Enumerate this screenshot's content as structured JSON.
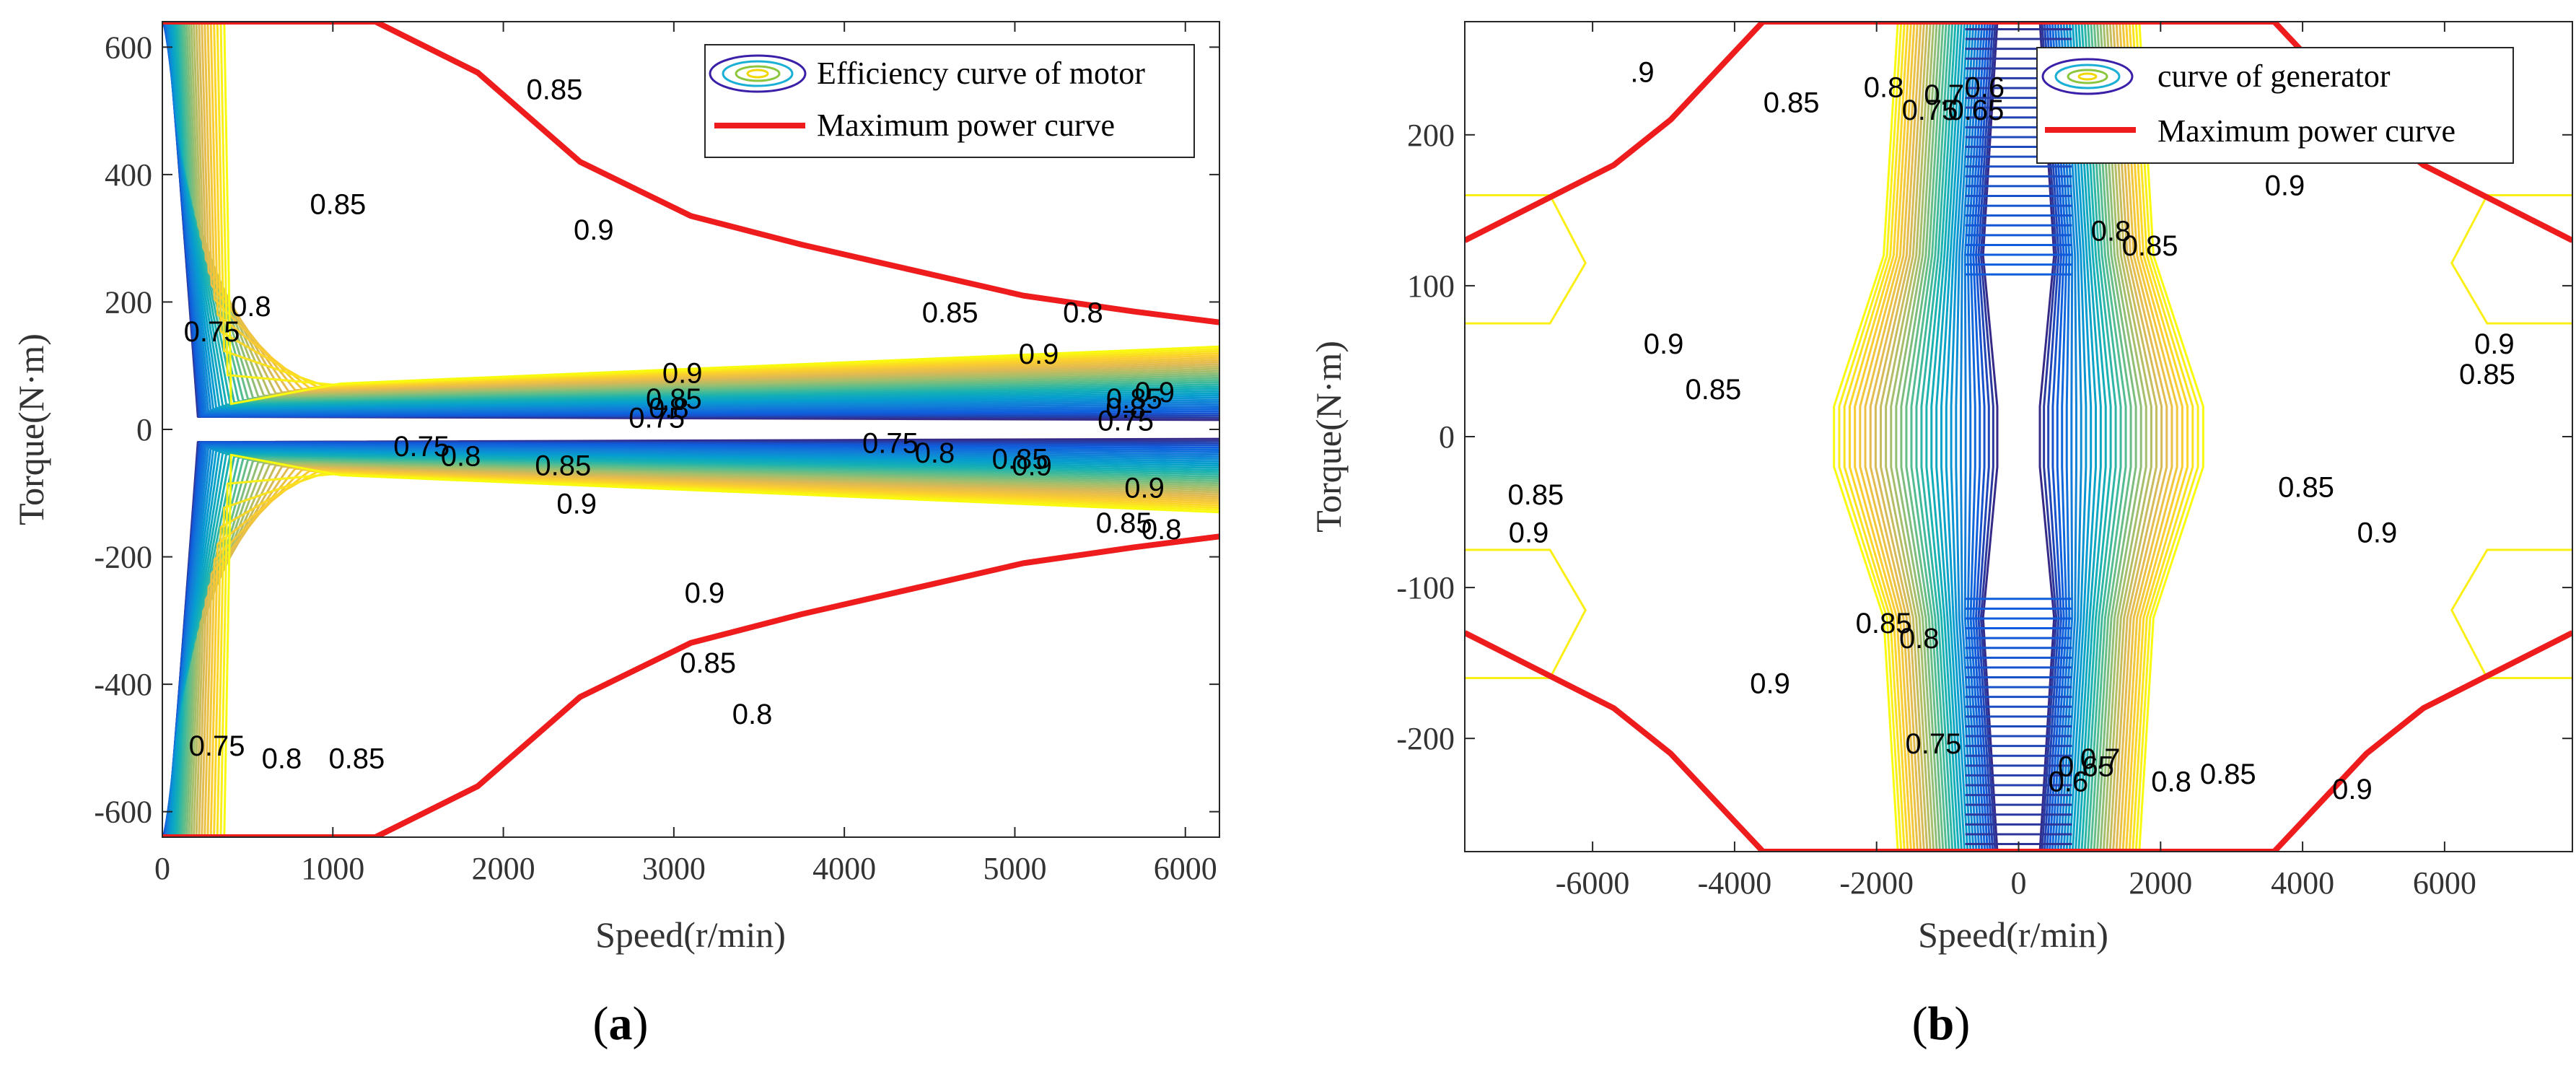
{
  "chart_data": [
    {
      "type": "contour",
      "panel_label": "a",
      "xlabel": "Speed(r/min)",
      "ylabel": "Torque(N·m)",
      "xlim": [
        0,
        6200
      ],
      "ylim": [
        -640,
        640
      ],
      "xticks": [
        0,
        1000,
        2000,
        3000,
        4000,
        5000,
        6000
      ],
      "yticks": [
        -600,
        -400,
        -200,
        0,
        200,
        400,
        600
      ],
      "legend": {
        "position": "top-right",
        "entries": [
          "Efficiency curve of motor",
          "Maximum power curve"
        ]
      },
      "contour_levels": [
        "0.75",
        "0.8",
        "0.85",
        "0.9"
      ],
      "max_power_curve": {
        "x": [
          0,
          1250,
          1850,
          2450,
          3100,
          3750,
          4400,
          5050,
          5700,
          6200
        ],
        "y": [
          640,
          640,
          560,
          420,
          335,
          290,
          250,
          210,
          185,
          168
        ]
      },
      "contour_labels": [
        {
          "text": "0.85",
          "x": 2300,
          "y": 530
        },
        {
          "text": "0.85",
          "x": 1030,
          "y": 350
        },
        {
          "text": "0.9",
          "x": 2530,
          "y": 310
        },
        {
          "text": "0.8",
          "x": 520,
          "y": 190
        },
        {
          "text": "0.75",
          "x": 290,
          "y": 150
        },
        {
          "text": "0.85",
          "x": 4620,
          "y": 180
        },
        {
          "text": "0.8",
          "x": 5400,
          "y": 180
        },
        {
          "text": "0.9",
          "x": 5140,
          "y": 115
        },
        {
          "text": "0.9",
          "x": 3050,
          "y": 85
        },
        {
          "text": "0.85",
          "x": 3000,
          "y": 45
        },
        {
          "text": "0.8",
          "x": 2970,
          "y": 30
        },
        {
          "text": "0.75",
          "x": 2900,
          "y": 15
        },
        {
          "text": "0.9",
          "x": 5820,
          "y": 55
        },
        {
          "text": "0.85",
          "x": 5700,
          "y": 45
        },
        {
          "text": "0.8",
          "x": 5650,
          "y": 30
        },
        {
          "text": "0.75",
          "x": 5650,
          "y": 10
        },
        {
          "text": "0.75",
          "x": 1520,
          "y": -30
        },
        {
          "text": "0.8",
          "x": 1750,
          "y": -45
        },
        {
          "text": "0.85",
          "x": 2350,
          "y": -60
        },
        {
          "text": "0.9",
          "x": 2430,
          "y": -120
        },
        {
          "text": "0.75",
          "x": 4270,
          "y": -25
        },
        {
          "text": "0.8",
          "x": 4530,
          "y": -40
        },
        {
          "text": "0.85",
          "x": 5030,
          "y": -50
        },
        {
          "text": "0.9",
          "x": 5100,
          "y": -60
        },
        {
          "text": "0.9",
          "x": 5760,
          "y": -95
        },
        {
          "text": "0.85",
          "x": 5640,
          "y": -150
        },
        {
          "text": "0.8",
          "x": 5860,
          "y": -160
        },
        {
          "text": "0.9",
          "x": 3180,
          "y": -260
        },
        {
          "text": "0.85",
          "x": 3200,
          "y": -370
        },
        {
          "text": "0.8",
          "x": 3460,
          "y": -450
        },
        {
          "text": "0.75",
          "x": 320,
          "y": -500
        },
        {
          "text": "0.8",
          "x": 700,
          "y": -520
        },
        {
          "text": "0.85",
          "x": 1140,
          "y": -520
        }
      ]
    },
    {
      "type": "contour",
      "panel_label": "b",
      "xlabel": "Speed(r/min)",
      "ylabel": "Torque(N·m)",
      "xlim": [
        -7800,
        7800
      ],
      "ylim": [
        -275,
        275
      ],
      "xticks": [
        -6000,
        -4000,
        -2000,
        0,
        2000,
        4000,
        6000
      ],
      "yticks": [
        -200,
        -100,
        0,
        100,
        200
      ],
      "legend": {
        "position": "top-right",
        "entries": [
          "curve of generator",
          "Maximum power curve"
        ]
      },
      "contour_levels": [
        "0.65",
        "0.7",
        "0.75",
        "0.8",
        "0.85",
        "0.9",
        "0.6"
      ],
      "max_power_curve": {
        "x": [
          -7800,
          -5700,
          -4900,
          -3600,
          3600,
          4900,
          5700,
          7800
        ],
        "y": [
          130,
          180,
          210,
          275,
          275,
          210,
          180,
          130
        ]
      },
      "contour_labels": [
        {
          "text": ".9",
          "x": -5300,
          "y": 240
        },
        {
          "text": "0.85",
          "x": -3200,
          "y": 220
        },
        {
          "text": "0.8",
          "x": -1900,
          "y": 230
        },
        {
          "text": "0.75",
          "x": -1250,
          "y": 215
        },
        {
          "text": "0.7",
          "x": -1050,
          "y": 225
        },
        {
          "text": "0.6",
          "x": -480,
          "y": 230
        },
        {
          "text": "0.65",
          "x": -600,
          "y": 215
        },
        {
          "text": "0.9",
          "x": -5000,
          "y": 60
        },
        {
          "text": "0.85",
          "x": -4300,
          "y": 30
        },
        {
          "text": "0.8",
          "x": 1300,
          "y": 135
        },
        {
          "text": "0.85",
          "x": 1850,
          "y": 125
        },
        {
          "text": "0.9",
          "x": 3750,
          "y": 165
        },
        {
          "text": "0.9",
          "x": 6700,
          "y": 60
        },
        {
          "text": "0.85",
          "x": 6600,
          "y": 40
        },
        {
          "text": "0.85",
          "x": -6800,
          "y": -40
        },
        {
          "text": "0.9",
          "x": -6900,
          "y": -65
        },
        {
          "text": "0.85",
          "x": 4050,
          "y": -35
        },
        {
          "text": "0.9",
          "x": 5050,
          "y": -65
        },
        {
          "text": "0.85",
          "x": -1900,
          "y": -125
        },
        {
          "text": "0.8",
          "x": -1400,
          "y": -135
        },
        {
          "text": "0.9",
          "x": -3500,
          "y": -165
        },
        {
          "text": "0.75",
          "x": -1200,
          "y": -205
        },
        {
          "text": "0.7",
          "x": 1150,
          "y": -215
        },
        {
          "text": "0.65",
          "x": 950,
          "y": -220
        },
        {
          "text": "0.6",
          "x": 700,
          "y": -230
        },
        {
          "text": "0.8",
          "x": 2150,
          "y": -230
        },
        {
          "text": "0.85",
          "x": 2950,
          "y": -225
        },
        {
          "text": "0.9",
          "x": 4700,
          "y": -235
        }
      ]
    }
  ]
}
